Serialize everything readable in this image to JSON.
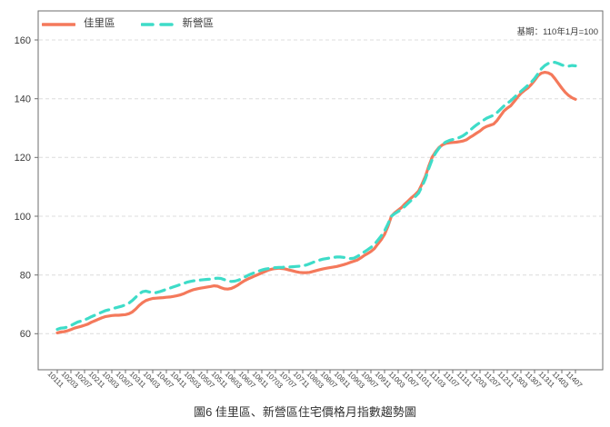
{
  "annotation": "基期：110年1月=100",
  "caption": "圖6 佳里區、新營區住宅價格月指數趨勢圖",
  "colors": {
    "jiali_line": "#F4795B",
    "xinying_line": "#3EDCC8",
    "gridline": "#DCDCDC",
    "spine": "#6E6E6E",
    "tick_text": "#3B3B3B"
  },
  "chart_data": {
    "type": "line",
    "title": "",
    "xlabel": "",
    "ylabel": "",
    "grid": "horizontal-dashed",
    "legend_position": "top-left",
    "y_ticks": [
      60,
      80,
      100,
      120,
      140,
      160
    ],
    "x_tick_labels": [
      "10111",
      "10203",
      "10207",
      "10211",
      "10303",
      "10307",
      "10311",
      "10403",
      "10407",
      "10411",
      "10503",
      "10507",
      "10511",
      "10603",
      "10607",
      "10611",
      "10703",
      "10707",
      "10711",
      "10803",
      "10807",
      "10811",
      "10903",
      "10907",
      "10911",
      "11003",
      "11007",
      "11011",
      "11103",
      "11107",
      "11111",
      "11203",
      "11207",
      "11211",
      "11303",
      "11307",
      "11311",
      "11403",
      "11407"
    ],
    "x_note": "monthly points from 10111 to 11407; labels shown every 4th month",
    "series": [
      {
        "name": "佳里區",
        "style": "solid",
        "color": "#F4795B",
        "values": [
          60.3,
          60.6,
          60.7,
          61.0,
          61.4,
          61.9,
          62.2,
          62.5,
          62.9,
          63.3,
          63.9,
          64.4,
          64.9,
          65.4,
          65.8,
          66.0,
          66.2,
          66.3,
          66.3,
          66.4,
          66.5,
          66.8,
          67.4,
          68.4,
          69.6,
          70.6,
          71.3,
          71.7,
          72.0,
          72.1,
          72.2,
          72.3,
          72.4,
          72.5,
          72.7,
          72.9,
          73.2,
          73.6,
          74.1,
          74.6,
          75.0,
          75.3,
          75.5,
          75.7,
          75.9,
          76.1,
          76.3,
          76.2,
          75.7,
          75.3,
          75.2,
          75.4,
          75.9,
          76.6,
          77.4,
          78.1,
          78.7,
          79.2,
          79.7,
          80.2,
          80.7,
          81.2,
          81.7,
          82.0,
          82.2,
          82.3,
          82.2,
          82.0,
          81.7,
          81.4,
          81.1,
          80.9,
          80.8,
          80.8,
          80.9,
          81.2,
          81.5,
          81.8,
          82.1,
          82.3,
          82.5,
          82.7,
          82.9,
          83.2,
          83.5,
          83.9,
          84.3,
          84.7,
          85.1,
          85.8,
          86.6,
          87.3,
          88.0,
          89.0,
          90.5,
          92.0,
          93.8,
          96.6,
          100.0,
          101.2,
          102.1,
          103.0,
          104.2,
          105.3,
          106.4,
          107.4,
          108.6,
          111.0,
          113.6,
          117.2,
          120.2,
          122.0,
          123.4,
          124.3,
          124.8,
          125.0,
          125.1,
          125.2,
          125.4,
          125.6,
          126.0,
          126.8,
          127.5,
          128.3,
          129.0,
          130.0,
          130.6,
          131.0,
          131.4,
          132.6,
          134.2,
          135.8,
          136.8,
          137.6,
          139.0,
          140.5,
          141.8,
          142.8,
          143.6,
          144.8,
          146.2,
          147.8,
          148.7,
          149.0,
          148.8,
          148.2,
          146.8,
          145.2,
          143.6,
          142.2,
          141.1,
          140.3,
          139.8
        ]
      },
      {
        "name": "新營區",
        "style": "dashed",
        "color": "#3EDCC8",
        "values": [
          61.5,
          61.9,
          62.0,
          62.3,
          62.8,
          63.4,
          64.0,
          64.3,
          64.7,
          65.2,
          65.8,
          66.3,
          66.8,
          67.3,
          67.8,
          68.1,
          68.4,
          68.8,
          69.1,
          69.4,
          69.8,
          70.4,
          71.3,
          72.4,
          73.6,
          74.3,
          74.5,
          74.2,
          73.9,
          74.0,
          74.3,
          74.7,
          75.1,
          75.5,
          75.9,
          76.3,
          76.7,
          77.1,
          77.5,
          77.8,
          78.0,
          78.2,
          78.3,
          78.4,
          78.5,
          78.6,
          78.8,
          78.9,
          78.8,
          78.4,
          78.0,
          77.8,
          77.9,
          78.2,
          78.7,
          79.3,
          79.9,
          80.4,
          80.9,
          81.3,
          81.7,
          82.0,
          82.2,
          82.4,
          82.5,
          82.6,
          82.6,
          82.7,
          82.7,
          82.8,
          82.9,
          83.0,
          83.1,
          83.4,
          83.8,
          84.3,
          84.7,
          85.1,
          85.4,
          85.6,
          85.8,
          86.0,
          86.1,
          86.1,
          86.0,
          85.8,
          85.6,
          85.7,
          86.3,
          87.0,
          87.8,
          88.6,
          89.4,
          90.4,
          91.8,
          93.3,
          95.0,
          97.4,
          100.0,
          100.9,
          101.6,
          102.4,
          103.4,
          104.5,
          105.6,
          106.7,
          107.9,
          110.2,
          112.8,
          116.4,
          119.4,
          121.6,
          123.2,
          124.5,
          125.3,
          125.8,
          126.1,
          126.4,
          126.8,
          127.4,
          128.2,
          129.2,
          130.2,
          131.1,
          131.9,
          132.7,
          133.4,
          133.9,
          134.4,
          135.3,
          136.4,
          137.5,
          138.4,
          139.3,
          140.4,
          141.5,
          142.5,
          143.5,
          144.5,
          145.6,
          146.9,
          148.5,
          150.2,
          151.3,
          152.0,
          152.4,
          152.4,
          152.0,
          151.5,
          151.1,
          151.1,
          151.3,
          151.2
        ]
      }
    ]
  }
}
